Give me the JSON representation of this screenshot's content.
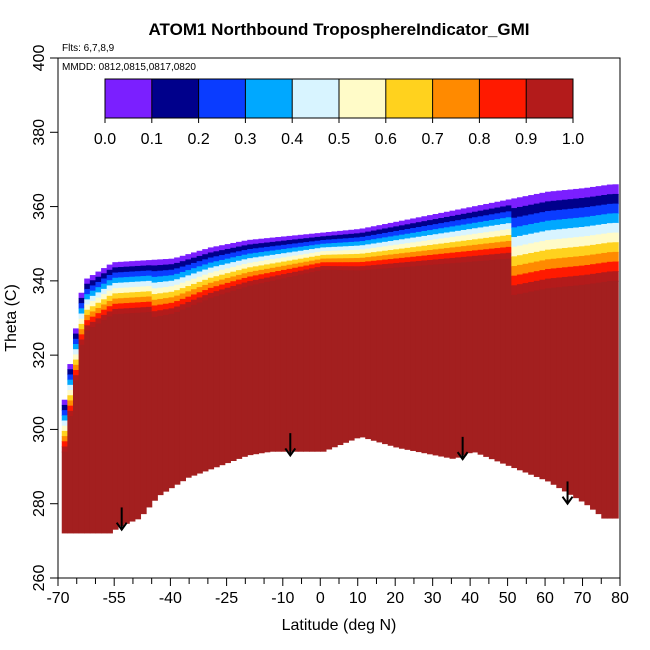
{
  "chart_data": {
    "type": "heatmap",
    "title": "ATOM1 Northbound TroposphereIndicator_GMI",
    "subtitle_flights": "Flts: 6,7,8,9",
    "subtitle_dates": "MMDD: 0812,0815,0817,0820",
    "xlabel": "Latitude (deg N)",
    "ylabel": "Theta (C)",
    "xlim": [
      -70,
      80
    ],
    "ylim": [
      260,
      400
    ],
    "x_tick_labels": [
      "-70",
      "-55",
      "-40",
      "-25",
      "-10",
      "0",
      "10",
      "20",
      "30",
      "40",
      "50",
      "60",
      "70",
      "80"
    ],
    "x_tick_values": [
      -70,
      -55,
      -40,
      -25,
      -10,
      0,
      10,
      20,
      30,
      40,
      50,
      60,
      70,
      80
    ],
    "x_minor_ticks": [
      -65,
      -60,
      -50,
      -45,
      -35,
      -30,
      -20,
      -15,
      -5,
      5,
      15,
      25,
      35,
      45,
      55,
      65,
      75
    ],
    "y_tick_values": [
      260,
      280,
      300,
      320,
      340,
      360,
      380,
      400
    ],
    "y_tick_labels": [
      "260",
      "280",
      "300",
      "320",
      "340",
      "360",
      "380",
      "400"
    ],
    "colorbar": {
      "range": [
        0.0,
        1.0
      ],
      "tick_labels": [
        "0.0",
        "0.1",
        "0.2",
        "0.3",
        "0.4",
        "0.5",
        "0.6",
        "0.7",
        "0.8",
        "0.9",
        "1.0"
      ],
      "colors": [
        "#7b1fff",
        "#00008b",
        "#0a3cff",
        "#00a8ff",
        "#d8f4ff",
        "#fffbc8",
        "#ffd21e",
        "#ff8a00",
        "#ff1a00",
        "#b31b1b"
      ]
    },
    "field": {
      "value_color": "#a31f1f",
      "bottom_boundary": [
        [
          -69,
          272
        ],
        [
          -57,
          272
        ],
        [
          -54,
          274
        ],
        [
          -49,
          276
        ],
        [
          -44,
          282
        ],
        [
          -36,
          287
        ],
        [
          -28,
          290
        ],
        [
          -20,
          293
        ],
        [
          -14,
          294
        ],
        [
          -6,
          294
        ],
        [
          0,
          294
        ],
        [
          10,
          298
        ],
        [
          20,
          295
        ],
        [
          30,
          293
        ],
        [
          35,
          292
        ],
        [
          40,
          294
        ],
        [
          50,
          290
        ],
        [
          60,
          286
        ],
        [
          70,
          280
        ],
        [
          75,
          276
        ],
        [
          79,
          276
        ]
      ],
      "top_boundary": [
        [
          -69,
          308
        ],
        [
          -64,
          340
        ],
        [
          -56,
          345
        ],
        [
          -40,
          346
        ],
        [
          -30,
          349
        ],
        [
          -20,
          351
        ],
        [
          -10,
          352
        ],
        [
          0,
          353
        ],
        [
          10,
          354
        ],
        [
          20,
          356
        ],
        [
          30,
          358
        ],
        [
          40,
          360
        ],
        [
          50,
          362
        ],
        [
          60,
          364
        ],
        [
          70,
          365
        ],
        [
          77,
          366
        ]
      ],
      "high_stratosphere_region_lat": [
        68,
        79
      ]
    },
    "arrows": [
      {
        "lat": -53,
        "theta": 279
      },
      {
        "lat": -8,
        "theta": 299
      },
      {
        "lat": 38,
        "theta": 298
      },
      {
        "lat": 66,
        "theta": 286
      }
    ],
    "grid": false,
    "legend": "colorbar top-inside"
  }
}
